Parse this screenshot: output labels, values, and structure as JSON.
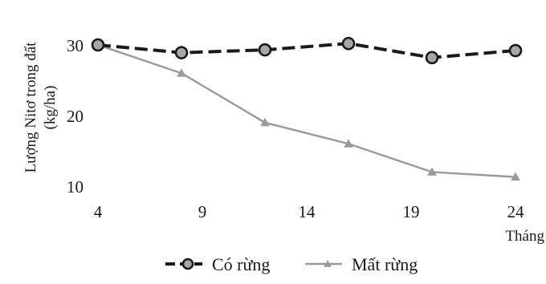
{
  "chart_data": {
    "type": "line",
    "x": [
      4,
      8,
      12,
      16,
      20,
      24
    ],
    "xticks": [
      4,
      9,
      14,
      19,
      24
    ],
    "yticks": [
      10,
      20,
      30
    ],
    "xlim": [
      4,
      24
    ],
    "ylim": [
      10,
      30
    ],
    "xlabel": "Tháng",
    "ylabel": [
      "Lượng Nitơ trong đất",
      "(kg/ha)"
    ],
    "grid": false,
    "legend_position": "bottom",
    "series": [
      {
        "name": "Có rừng",
        "values": [
          30,
          28.9,
          29.3,
          30.2,
          28.2,
          29.2
        ],
        "color": "#1a1a1a",
        "style": "dashed",
        "marker": "circle"
      },
      {
        "name": "Mất rừng",
        "values": [
          30,
          26,
          19,
          16,
          12,
          11.3
        ],
        "color": "#9a9a9a",
        "style": "solid",
        "marker": "triangle"
      }
    ]
  }
}
